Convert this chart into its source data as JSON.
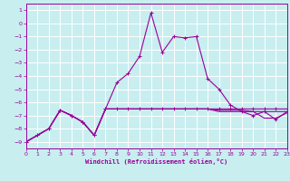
{
  "xlabel": "Windchill (Refroidissement éolien,°C)",
  "bg_color": "#c8eef0",
  "grid_color": "#ffffff",
  "line_color": "#990099",
  "xlim": [
    0,
    23
  ],
  "ylim": [
    -9.5,
    1.5
  ],
  "yticks": [
    1,
    0,
    -1,
    -2,
    -3,
    -4,
    -5,
    -6,
    -7,
    -8,
    -9
  ],
  "xticks": [
    0,
    1,
    2,
    3,
    4,
    5,
    6,
    7,
    8,
    9,
    10,
    11,
    12,
    13,
    14,
    15,
    16,
    17,
    18,
    19,
    20,
    21,
    22,
    23
  ],
  "hours": [
    0,
    1,
    2,
    3,
    4,
    5,
    6,
    7,
    8,
    9,
    10,
    11,
    12,
    13,
    14,
    15,
    16,
    17,
    18,
    19,
    20,
    21,
    22,
    23
  ],
  "line_main": [
    -9.0,
    -8.5,
    -8.0,
    -6.6,
    -7.0,
    -7.5,
    -8.5,
    -6.5,
    -4.5,
    -3.8,
    -2.5,
    0.8,
    -2.2,
    -1.0,
    -1.1,
    -1.0,
    -4.2,
    -5.0,
    -6.2,
    -6.7,
    -7.0,
    -6.7,
    -7.3,
    -6.7
  ],
  "line_flat1": [
    -9.0,
    -8.5,
    -8.0,
    -6.6,
    -7.0,
    -7.5,
    -8.5,
    -6.5,
    -6.5,
    -6.5,
    -6.5,
    -6.5,
    -6.5,
    -6.5,
    -6.5,
    -6.5,
    -6.5,
    -6.5,
    -6.5,
    -6.5,
    -6.5,
    -6.5,
    -6.5,
    -6.5
  ],
  "line_flat2": [
    -9.0,
    -8.5,
    -8.0,
    -6.6,
    -7.0,
    -7.5,
    -8.5,
    -6.5,
    -6.5,
    -6.5,
    -6.5,
    -6.5,
    -6.5,
    -6.5,
    -6.5,
    -6.5,
    -6.5,
    -6.6,
    -6.6,
    -6.6,
    -6.7,
    -6.7,
    -6.7,
    -6.7
  ],
  "line_flat3": [
    -9.0,
    -8.5,
    -8.0,
    -6.6,
    -7.0,
    -7.5,
    -8.5,
    -6.5,
    -6.5,
    -6.5,
    -6.5,
    -6.5,
    -6.5,
    -6.5,
    -6.5,
    -6.5,
    -6.5,
    -6.7,
    -6.7,
    -6.7,
    -6.7,
    -7.2,
    -7.2,
    -6.8
  ]
}
